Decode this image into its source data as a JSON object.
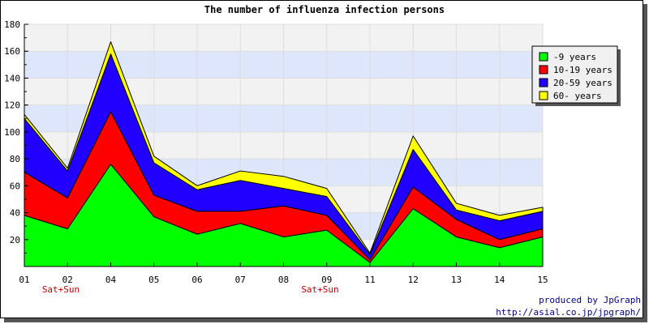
{
  "chart_data": {
    "type": "area",
    "stacked": true,
    "title": "The number of influenza infection persons",
    "categories": [
      "01",
      "02",
      "04",
      "05",
      "06",
      "07",
      "08",
      "09",
      "11",
      "12",
      "13",
      "14",
      "15"
    ],
    "category_sublabels": [
      "Sat+Sun",
      "",
      "",
      "",
      "",
      "",
      "Sat+Sun",
      "",
      "",
      "",
      "",
      "",
      ""
    ],
    "series": [
      {
        "name": "-9 years",
        "color": "#00ff00",
        "values": [
          38,
          28,
          76,
          37,
          24,
          32,
          22,
          27,
          3,
          43,
          22,
          14,
          22
        ]
      },
      {
        "name": "10-19 years",
        "color": "#ff0000",
        "values": [
          32,
          23,
          39,
          16,
          17,
          9,
          23,
          11,
          2,
          16,
          13,
          6,
          6
        ]
      },
      {
        "name": "20-59 years",
        "color": "#2200ff",
        "values": [
          40,
          20,
          43,
          24,
          16,
          23,
          13,
          14,
          4,
          28,
          7,
          14,
          13
        ]
      },
      {
        "name": "60- years",
        "color": "#ffff00",
        "values": [
          3,
          2,
          9,
          5,
          3,
          7,
          9,
          6,
          1,
          10,
          5,
          4,
          3
        ]
      }
    ],
    "ylim": [
      0,
      180
    ],
    "yticks": [
      20,
      40,
      60,
      80,
      100,
      120,
      140,
      160,
      180
    ],
    "grid": true,
    "legend_position": "right"
  },
  "credit": {
    "line1": "produced by JpGraph",
    "line2": "http://asial.co.jp/jpgraph/"
  }
}
